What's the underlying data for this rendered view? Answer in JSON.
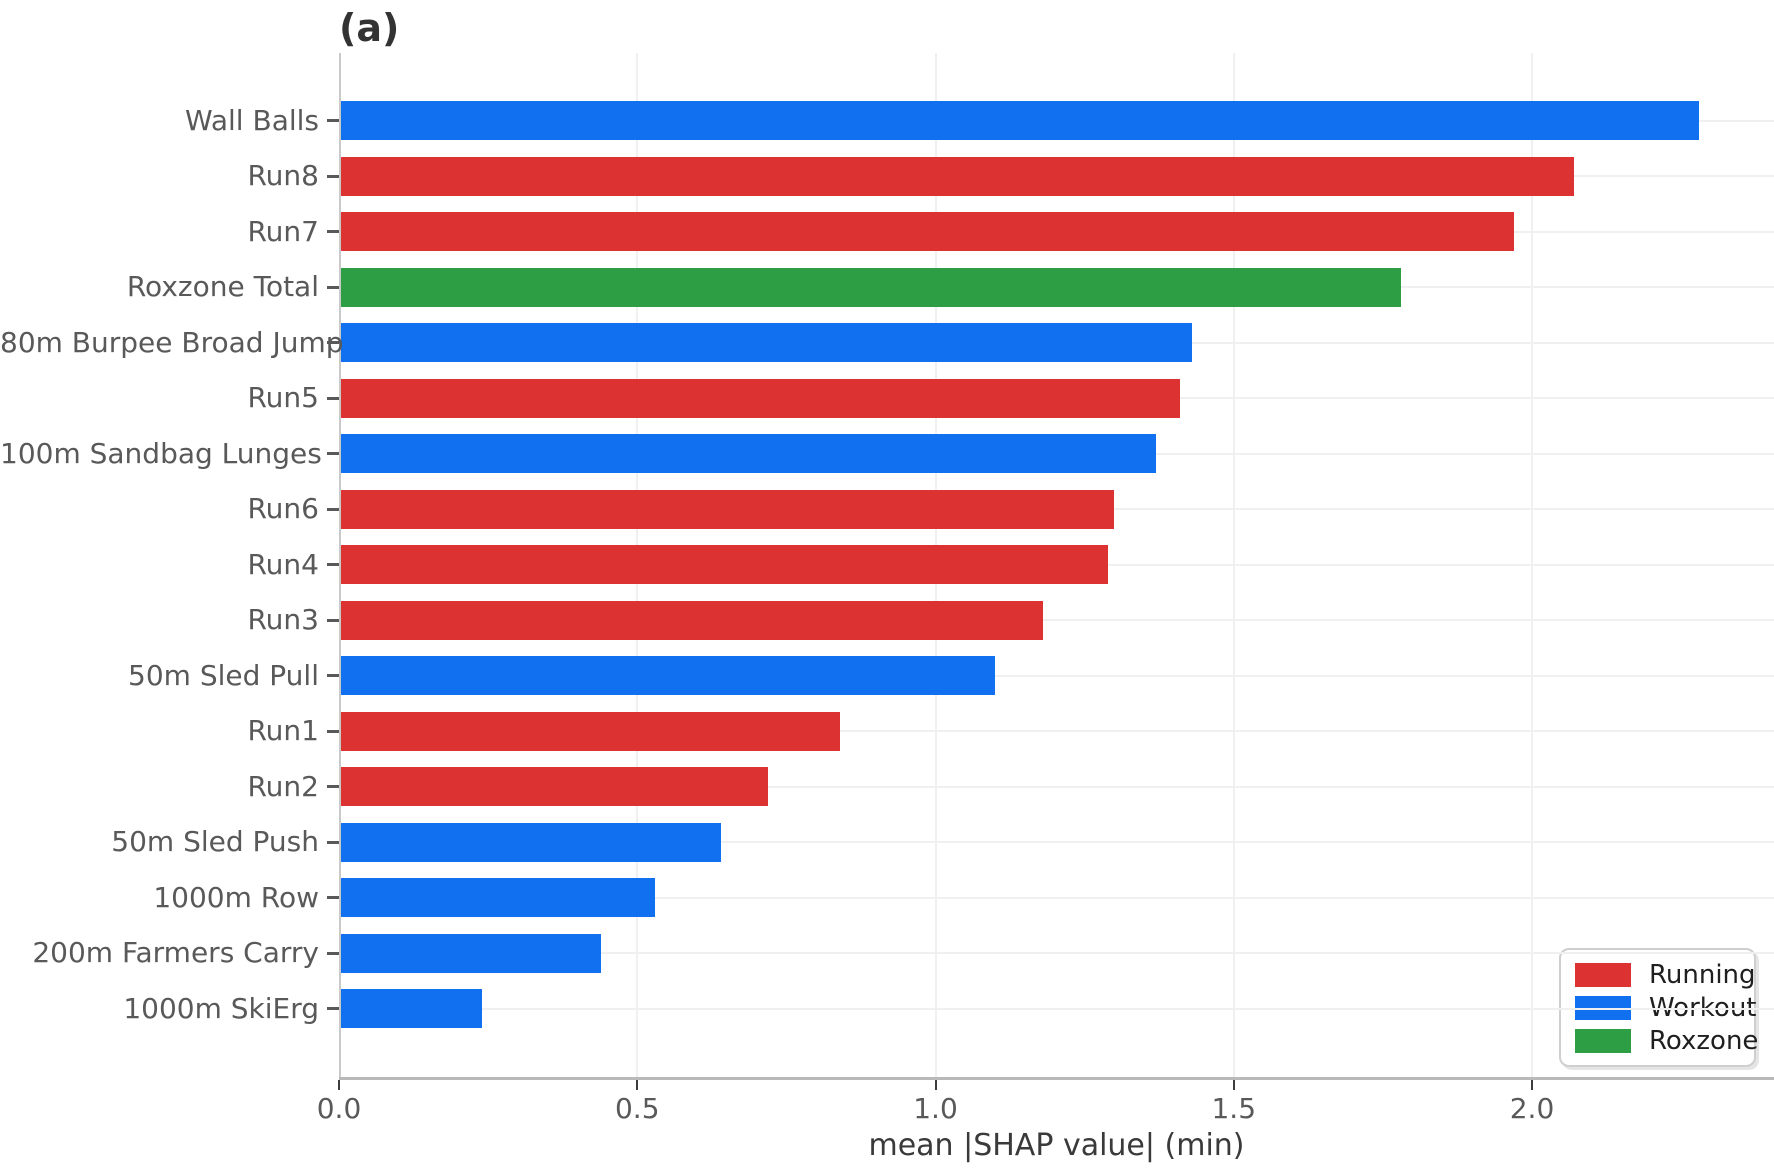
{
  "title": "(a)",
  "axes": {
    "xlabel": "mean |SHAP value| (min)",
    "x_tick_labels": [
      "0.0",
      "0.5",
      "1.0",
      "1.5",
      "2.0"
    ]
  },
  "legend": {
    "items": [
      {
        "label": "Running",
        "color": "#DC3232"
      },
      {
        "label": "Workout",
        "color": "#1170F0"
      },
      {
        "label": "Roxzone",
        "color": "#2E9E44"
      }
    ]
  },
  "chart_data": {
    "type": "bar",
    "orientation": "horizontal",
    "title": "(a)",
    "xlabel": "mean |SHAP value| (min)",
    "xlim": [
      0,
      2.41
    ],
    "x_ticks": [
      0,
      0.5,
      1.0,
      1.5,
      2.0
    ],
    "grid": true,
    "legend_position": "lower right",
    "colors": {
      "Running": "#DC3232",
      "Workout": "#1170F0",
      "Roxzone": "#2E9E44"
    },
    "bars": [
      {
        "label": "Wall Balls",
        "value": 2.28,
        "group": "Workout"
      },
      {
        "label": "Run8",
        "value": 2.07,
        "group": "Running"
      },
      {
        "label": "Run7",
        "value": 1.97,
        "group": "Running"
      },
      {
        "label": "Roxzone Total",
        "value": 1.78,
        "group": "Roxzone"
      },
      {
        "label": "80m Burpee Broad Jump",
        "value": 1.43,
        "group": "Workout"
      },
      {
        "label": "Run5",
        "value": 1.41,
        "group": "Running"
      },
      {
        "label": "100m Sandbag Lunges",
        "value": 1.37,
        "group": "Workout"
      },
      {
        "label": "Run6",
        "value": 1.3,
        "group": "Running"
      },
      {
        "label": "Run4",
        "value": 1.29,
        "group": "Running"
      },
      {
        "label": "Run3",
        "value": 1.18,
        "group": "Running"
      },
      {
        "label": "50m Sled Pull",
        "value": 1.1,
        "group": "Workout"
      },
      {
        "label": "Run1",
        "value": 0.84,
        "group": "Running"
      },
      {
        "label": "Run2",
        "value": 0.72,
        "group": "Running"
      },
      {
        "label": "50m Sled Push",
        "value": 0.64,
        "group": "Workout"
      },
      {
        "label": "1000m Row",
        "value": 0.53,
        "group": "Workout"
      },
      {
        "label": "200m Farmers Carry",
        "value": 0.44,
        "group": "Workout"
      },
      {
        "label": "1000m SkiErg",
        "value": 0.24,
        "group": "Workout"
      }
    ]
  }
}
